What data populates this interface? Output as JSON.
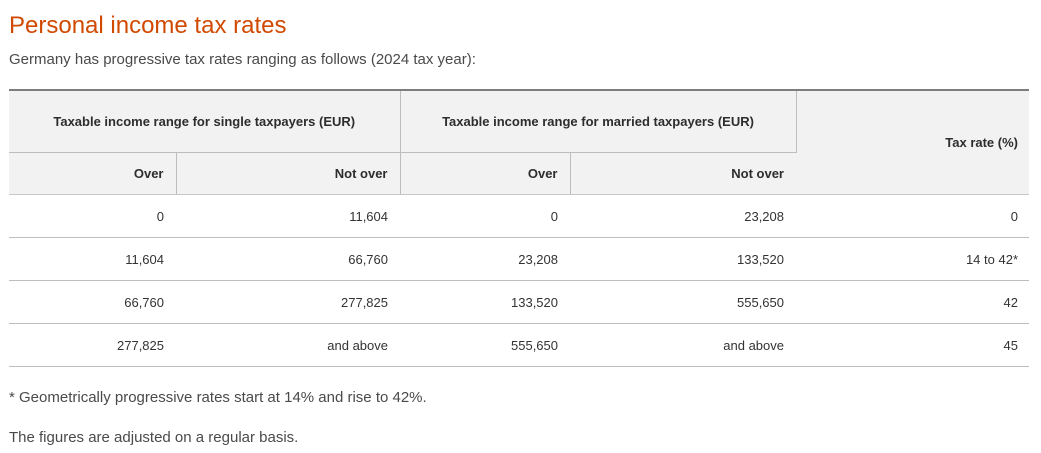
{
  "title": "Personal income tax rates",
  "intro": "Germany has progressive tax rates ranging as follows (2024 tax year):",
  "table": {
    "group_single": "Taxable income range for single taxpayers (EUR)",
    "group_married": "Taxable income range for married taxpayers (EUR)",
    "rate_header": "Tax rate (%)",
    "single_over": "Over",
    "single_not_over": "Not over",
    "married_over": "Over",
    "married_not_over": "Not over",
    "rows": [
      {
        "single_over": "0",
        "single_not_over": "11,604",
        "married_over": "0",
        "married_not_over": "23,208",
        "rate": "0"
      },
      {
        "single_over": "11,604",
        "single_not_over": "66,760",
        "married_over": "23,208",
        "married_not_over": "133,520",
        "rate": "14 to 42*"
      },
      {
        "single_over": "66,760",
        "single_not_over": "277,825",
        "married_over": "133,520",
        "married_not_over": "555,650",
        "rate": "42"
      },
      {
        "single_over": "277,825",
        "single_not_over": "and above",
        "married_over": "555,650",
        "married_not_over": "and above",
        "rate": "45"
      }
    ]
  },
  "notes": {
    "footnote": "* Geometrically progressive rates start at 14% and rise to 42%.",
    "adjustment": "The figures are adjusted on a regular basis."
  },
  "colors": {
    "title": "#d04a02",
    "header_background": "#f2f2f2",
    "rule": "#bdbdbd"
  }
}
